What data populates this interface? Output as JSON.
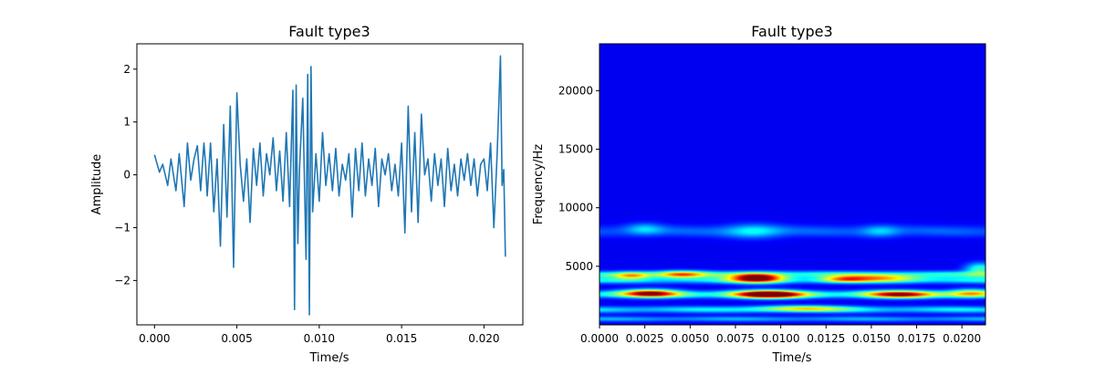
{
  "chart_data": [
    {
      "type": "line",
      "title": "Fault type3",
      "xlabel": "Time/s",
      "ylabel": "Amplitude",
      "xlim": [
        -0.00107,
        0.02236
      ],
      "ylim": [
        -2.84,
        2.48
      ],
      "xticks": [
        0.0,
        0.005,
        0.01,
        0.015,
        0.02
      ],
      "xtick_labels": [
        "0.000",
        "0.005",
        "0.010",
        "0.015",
        "0.020"
      ],
      "yticks": [
        -2,
        -1,
        0,
        1,
        2
      ],
      "ytick_labels": [
        "−2",
        "−1",
        "0",
        "1",
        "2"
      ],
      "grid": false,
      "color": "#1f77b4",
      "series": [
        {
          "x": [
            0.0,
            0.0003,
            0.0005,
            0.0008,
            0.001,
            0.0013,
            0.0015,
            0.0018,
            0.002,
            0.0022,
            0.0024,
            0.0026,
            0.0028,
            0.003,
            0.0031,
            0.0032,
            0.0034,
            0.0036,
            0.0038,
            0.004,
            0.0042,
            0.0044,
            0.0046,
            0.0048,
            0.005,
            0.0052,
            0.0054,
            0.0056,
            0.0058,
            0.006,
            0.0062,
            0.0064,
            0.0066,
            0.0068,
            0.007,
            0.0072,
            0.0074,
            0.0076,
            0.0078,
            0.008,
            0.0082,
            0.0084,
            0.0085,
            0.0086,
            0.0087,
            0.0088,
            0.009,
            0.0092,
            0.0093,
            0.0094,
            0.0095,
            0.0096,
            0.0098,
            0.01,
            0.0102,
            0.0104,
            0.0106,
            0.0108,
            0.011,
            0.0112,
            0.0114,
            0.0116,
            0.0118,
            0.012,
            0.0122,
            0.0124,
            0.0126,
            0.0128,
            0.013,
            0.0132,
            0.0134,
            0.0136,
            0.0138,
            0.014,
            0.0142,
            0.0144,
            0.0146,
            0.0148,
            0.015,
            0.0152,
            0.0154,
            0.0156,
            0.0158,
            0.016,
            0.0162,
            0.0164,
            0.0166,
            0.0168,
            0.017,
            0.0172,
            0.0174,
            0.0176,
            0.0178,
            0.018,
            0.0182,
            0.0184,
            0.0186,
            0.0188,
            0.019,
            0.0192,
            0.0194,
            0.0196,
            0.0198,
            0.02,
            0.0202,
            0.0204,
            0.0206,
            0.0208,
            0.021,
            0.0211,
            0.0212,
            0.0213
          ],
          "y": [
            0.38,
            0.05,
            0.2,
            -0.2,
            0.3,
            -0.3,
            0.4,
            -0.6,
            0.6,
            -0.1,
            0.3,
            0.55,
            -0.3,
            0.6,
            0.2,
            -0.4,
            0.6,
            -0.7,
            0.3,
            -1.35,
            0.95,
            -0.8,
            1.3,
            -1.75,
            1.55,
            0.2,
            -0.5,
            0.3,
            -0.9,
            0.5,
            -0.2,
            0.6,
            -0.4,
            0.4,
            0.0,
            0.7,
            -0.3,
            0.45,
            -0.5,
            0.8,
            -0.6,
            1.6,
            -2.55,
            1.7,
            -1.3,
            0.1,
            1.45,
            -1.6,
            1.9,
            -2.65,
            2.05,
            -0.7,
            0.4,
            -0.5,
            0.8,
            -0.2,
            0.4,
            -0.3,
            0.5,
            -0.4,
            0.2,
            -0.1,
            0.4,
            -0.8,
            0.5,
            -0.3,
            0.6,
            -0.4,
            0.3,
            -0.2,
            0.5,
            -0.6,
            0.3,
            0.0,
            0.4,
            -0.3,
            0.2,
            -0.4,
            0.6,
            -1.1,
            1.3,
            -0.7,
            0.8,
            -0.9,
            1.15,
            0.0,
            0.3,
            -0.5,
            0.4,
            -0.2,
            0.3,
            -0.6,
            0.5,
            -0.3,
            0.2,
            -0.4,
            0.3,
            -0.1,
            0.4,
            -0.2,
            0.3,
            -0.4,
            0.2,
            0.3,
            -0.3,
            0.6,
            -1.0,
            0.4,
            2.25,
            -0.2,
            0.1,
            -1.55
          ]
        }
      ]
    },
    {
      "type": "heatmap",
      "title": "Fault type3",
      "xlabel": "Time/s",
      "ylabel": "Frequency/Hz",
      "xlim": [
        0.0,
        0.0213
      ],
      "ylim": [
        0,
        24000
      ],
      "xticks": [
        0.0,
        0.0025,
        0.005,
        0.0075,
        0.01,
        0.0125,
        0.015,
        0.0175,
        0.02
      ],
      "xtick_labels": [
        "0.0000",
        "0.0025",
        "0.0050",
        "0.0075",
        "0.0100",
        "0.0125",
        "0.0150",
        "0.0175",
        "0.0200"
      ],
      "yticks": [
        5000,
        10000,
        15000,
        20000
      ],
      "ytick_labels": [
        "5000",
        "10000",
        "15000",
        "20000"
      ],
      "colormap": "jet",
      "background_color": "#00007f",
      "bands": [
        {
          "freq": 8000,
          "width": 500,
          "intensity": 0.13
        },
        {
          "freq": 4300,
          "width": 280,
          "intensity": 0.35
        },
        {
          "freq": 3800,
          "width": 280,
          "intensity": 0.3
        },
        {
          "freq": 2600,
          "width": 300,
          "intensity": 0.4
        },
        {
          "freq": 1300,
          "width": 280,
          "intensity": 0.3
        },
        {
          "freq": 500,
          "width": 220,
          "intensity": 0.22
        }
      ],
      "blobs": [
        {
          "t": 0.0087,
          "f": 4000,
          "dt": 0.0014,
          "df": 380,
          "intensity": 0.95
        },
        {
          "t": 0.0093,
          "f": 2600,
          "dt": 0.0018,
          "df": 330,
          "intensity": 1.0
        },
        {
          "t": 0.0028,
          "f": 2700,
          "dt": 0.0015,
          "df": 330,
          "intensity": 0.72
        },
        {
          "t": 0.0165,
          "f": 2600,
          "dt": 0.0018,
          "df": 320,
          "intensity": 0.65
        },
        {
          "t": 0.0045,
          "f": 4300,
          "dt": 0.0013,
          "df": 300,
          "intensity": 0.5
        },
        {
          "t": 0.0018,
          "f": 4200,
          "dt": 0.001,
          "df": 300,
          "intensity": 0.45
        },
        {
          "t": 0.0155,
          "f": 4000,
          "dt": 0.0022,
          "df": 320,
          "intensity": 0.45
        },
        {
          "t": 0.0205,
          "f": 2700,
          "dt": 0.0012,
          "df": 350,
          "intensity": 0.45
        },
        {
          "t": 0.021,
          "f": 4800,
          "dt": 0.0008,
          "df": 500,
          "intensity": 0.35
        },
        {
          "t": 0.0135,
          "f": 3900,
          "dt": 0.0012,
          "df": 280,
          "intensity": 0.35
        },
        {
          "t": 0.0085,
          "f": 8000,
          "dt": 0.0015,
          "df": 600,
          "intensity": 0.22
        },
        {
          "t": 0.0025,
          "f": 8200,
          "dt": 0.001,
          "df": 500,
          "intensity": 0.18
        },
        {
          "t": 0.0155,
          "f": 8000,
          "dt": 0.001,
          "df": 500,
          "intensity": 0.17
        },
        {
          "t": 0.0112,
          "f": 1400,
          "dt": 0.0025,
          "df": 250,
          "intensity": 0.4
        }
      ]
    }
  ]
}
